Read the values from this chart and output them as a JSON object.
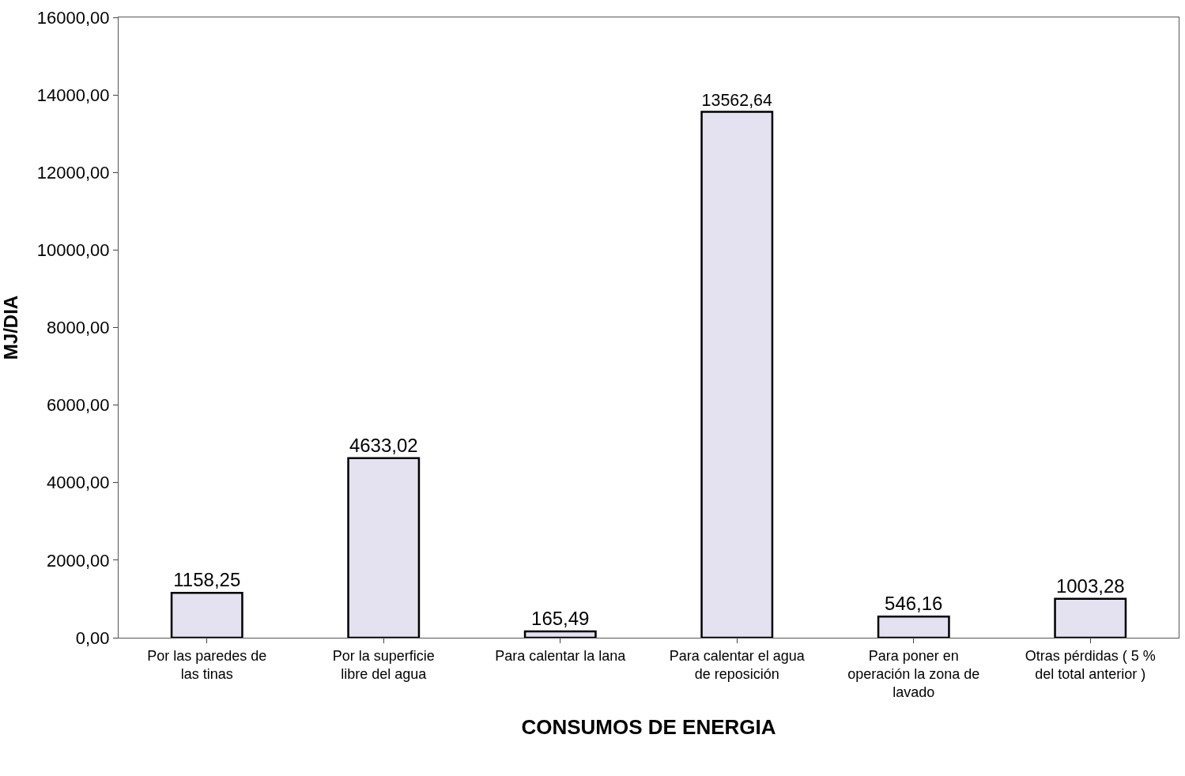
{
  "chart_data": {
    "type": "bar",
    "xlabel": "CONSUMOS DE ENERGIA",
    "ylabel": "MJ/DIA",
    "categories": [
      "Por las paredes de las tinas",
      "Por la superficie libre del agua",
      "Para calentar la lana",
      "Para calentar el agua de reposición",
      "Para poner en operación la zona de lavado",
      "Otras pérdidas ( 5 % del total anterior )"
    ],
    "values": [
      1158.25,
      4633.02,
      165.49,
      13562.64,
      546.16,
      1003.28
    ],
    "value_labels": [
      "1158,25",
      "4633,02",
      "165,49",
      "13562,64",
      "546,16",
      "1003,28"
    ],
    "color": "#e4e2f0",
    "ylim": [
      0,
      16000
    ],
    "yticks": [
      {
        "value": 0,
        "label": "0,00"
      },
      {
        "value": 2000,
        "label": "2000,00"
      },
      {
        "value": 4000,
        "label": "4000,00"
      },
      {
        "value": 6000,
        "label": "6000,00"
      },
      {
        "value": 8000,
        "label": "8000,00"
      },
      {
        "value": 10000,
        "label": "10000,00"
      },
      {
        "value": 12000,
        "label": "12000,00"
      },
      {
        "value": 14000,
        "label": "14000,00"
      },
      {
        "value": 16000,
        "label": "16000,00"
      }
    ],
    "legend": false
  }
}
